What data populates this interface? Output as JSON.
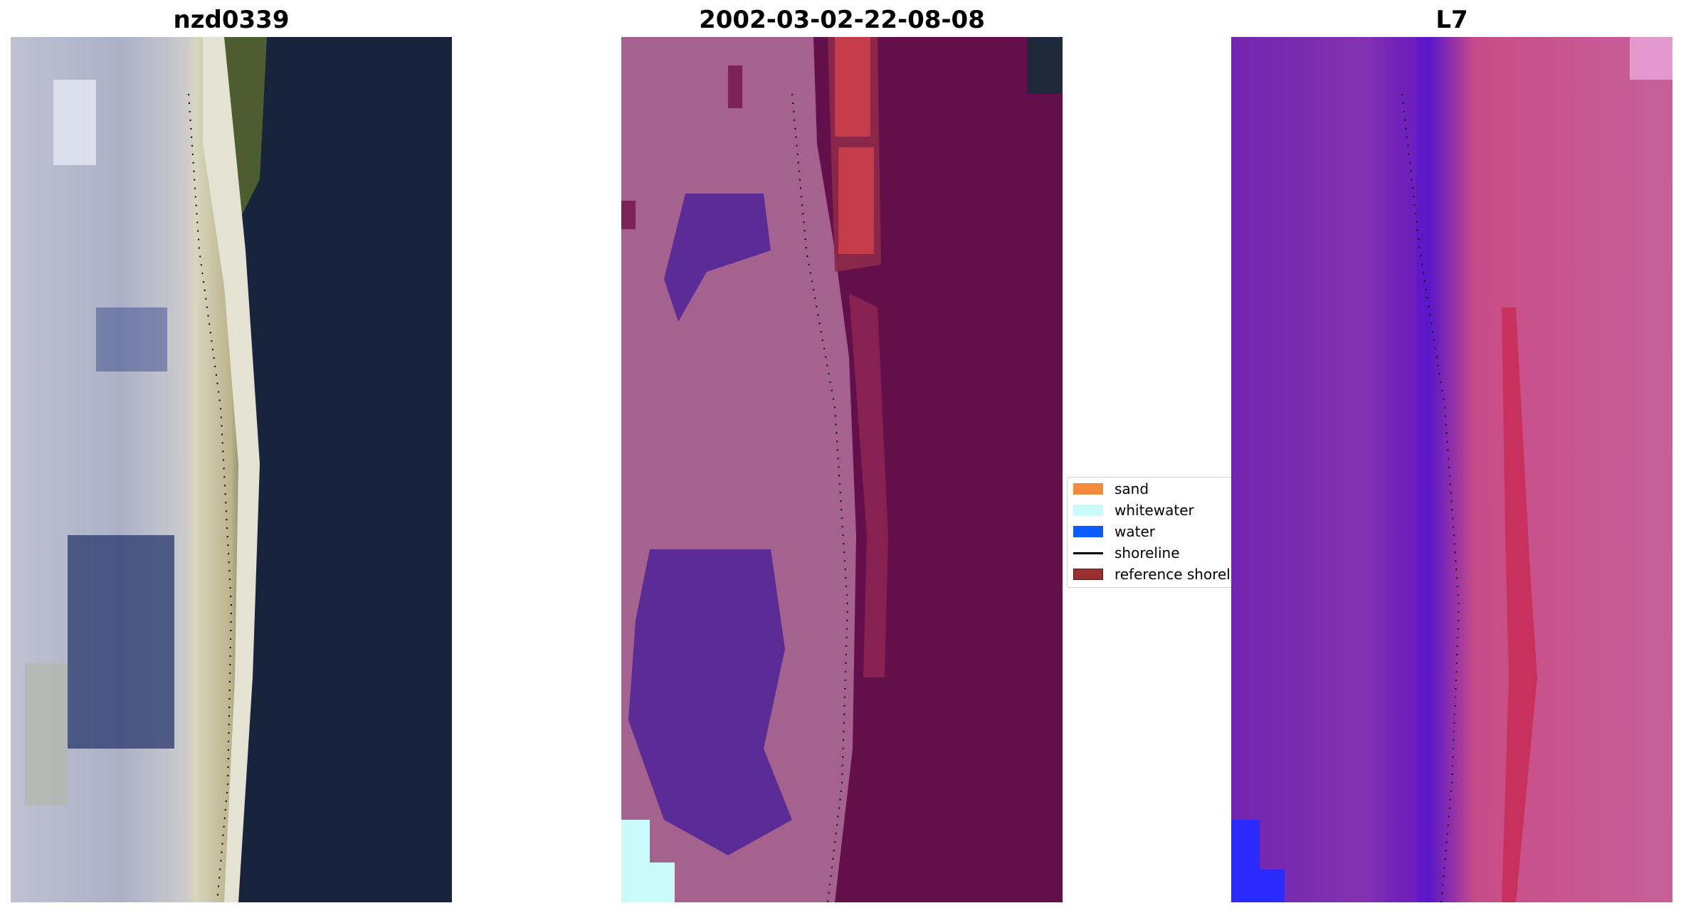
{
  "panels": [
    {
      "title": "nzd0339",
      "icon": "rgb-satellite-image-icon"
    },
    {
      "title": "2002-03-02-22-08-08",
      "icon": "classified-image-icon"
    },
    {
      "title": "L7",
      "icon": "false-color-image-icon"
    }
  ],
  "legend": {
    "items": [
      {
        "label": "sand",
        "color": "#f68a3c",
        "kind": "patch"
      },
      {
        "label": "whitewater",
        "color": "#c8fbf9",
        "kind": "patch"
      },
      {
        "label": "water",
        "color": "#0a5cff",
        "kind": "patch"
      },
      {
        "label": "shoreline",
        "color": "#000000",
        "kind": "line"
      },
      {
        "label": "reference shoreline",
        "color": "#9a3030",
        "kind": "patch"
      }
    ]
  }
}
